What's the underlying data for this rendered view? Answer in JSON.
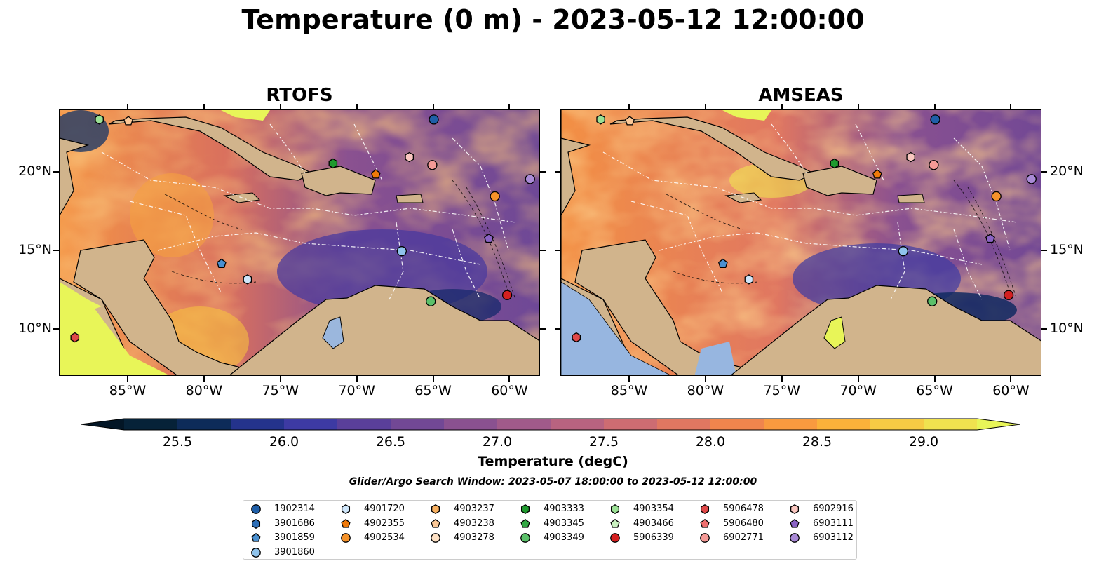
{
  "title": "Temperature (0 m) - 2023-05-12 12:00:00",
  "panels": [
    {
      "title": "RTOFS"
    },
    {
      "title": "AMSEAS"
    }
  ],
  "map_axes": {
    "lon_range": [
      -89.5,
      -58.0
    ],
    "lat_range": [
      7.0,
      24.0
    ],
    "x_ticks": [
      {
        "value": -85,
        "label": "85°W"
      },
      {
        "value": -80,
        "label": "80°W"
      },
      {
        "value": -75,
        "label": "75°W"
      },
      {
        "value": -70,
        "label": "70°W"
      },
      {
        "value": -65,
        "label": "65°W"
      },
      {
        "value": -60,
        "label": "60°W"
      }
    ],
    "y_ticks": [
      {
        "value": 20,
        "label": "20°N"
      },
      {
        "value": 15,
        "label": "15°N"
      },
      {
        "value": 10,
        "label": "10°N"
      }
    ]
  },
  "colorbar": {
    "label": "Temperature (degC)",
    "min": 25.25,
    "max": 29.25,
    "extend": "both",
    "ticks": [
      "25.5",
      "26.0",
      "26.5",
      "27.0",
      "27.5",
      "28.0",
      "28.5",
      "29.0"
    ],
    "colors": [
      "#062238",
      "#0d2b59",
      "#24338c",
      "#3d3aa3",
      "#5a3f9a",
      "#724895",
      "#8a5190",
      "#a15a8a",
      "#b86380",
      "#cd6c72",
      "#e07761",
      "#f0854d",
      "#f99a3f",
      "#fbb13a",
      "#f6cb44",
      "#f0e24f"
    ],
    "under_color": "#031626",
    "over_color": "#e8f558"
  },
  "search_window": "Glider/Argo Search Window: 2023-05-07 18:00:00 to 2023-05-12 12:00:00",
  "land_color": "#d1b48c",
  "legend": [
    {
      "id": "1902314",
      "marker": "circle",
      "color": "#1f5fa8"
    },
    {
      "id": "3901686",
      "marker": "hexagon",
      "color": "#2d6fb8"
    },
    {
      "id": "3901859",
      "marker": "pentagon",
      "color": "#4a90d0"
    },
    {
      "id": "3901860",
      "marker": "circle",
      "color": "#8fc3ec"
    },
    {
      "id": "4901720",
      "marker": "hexagon",
      "color": "#cfe6fa"
    },
    {
      "id": "4902355",
      "marker": "pentagon",
      "color": "#f07a0a"
    },
    {
      "id": "4902534",
      "marker": "circle",
      "color": "#f5922a"
    },
    {
      "id": "4903237",
      "marker": "hexagon",
      "color": "#f8b060"
    },
    {
      "id": "4903238",
      "marker": "pentagon",
      "color": "#fbc897"
    },
    {
      "id": "4903278",
      "marker": "circle",
      "color": "#fde0c4"
    },
    {
      "id": "4903333",
      "marker": "hexagon",
      "color": "#1f9a2e"
    },
    {
      "id": "4903345",
      "marker": "pentagon",
      "color": "#33a844"
    },
    {
      "id": "4903349",
      "marker": "circle",
      "color": "#5bc06a"
    },
    {
      "id": "4903354",
      "marker": "hexagon",
      "color": "#9be195"
    },
    {
      "id": "4903466",
      "marker": "pentagon",
      "color": "#c9f1c0"
    },
    {
      "id": "5906339",
      "marker": "circle",
      "color": "#d42020"
    },
    {
      "id": "5906478",
      "marker": "hexagon",
      "color": "#e04848"
    },
    {
      "id": "5906480",
      "marker": "pentagon",
      "color": "#ee7070"
    },
    {
      "id": "6902771",
      "marker": "circle",
      "color": "#f59a96"
    },
    {
      "id": "6902916",
      "marker": "hexagon",
      "color": "#fac7c0"
    },
    {
      "id": "6903111",
      "marker": "pentagon",
      "color": "#8a63c4"
    },
    {
      "id": "6903112",
      "marker": "circle",
      "color": "#a98ad6"
    }
  ],
  "floats": [
    {
      "lon": -86.9,
      "lat": 23.4,
      "marker": "hexagon",
      "color": "#9be195"
    },
    {
      "lon": -85.0,
      "lat": 23.3,
      "marker": "pentagon",
      "color": "#fbc897"
    },
    {
      "lon": -65.0,
      "lat": 23.4,
      "marker": "circle",
      "color": "#1f5fa8"
    },
    {
      "lon": -66.6,
      "lat": 21.0,
      "marker": "hexagon",
      "color": "#fac7c0"
    },
    {
      "lon": -65.1,
      "lat": 20.5,
      "marker": "circle",
      "color": "#f59a96"
    },
    {
      "lon": -71.6,
      "lat": 20.6,
      "marker": "hexagon",
      "color": "#1f9a2e"
    },
    {
      "lon": -68.8,
      "lat": 19.9,
      "marker": "pentagon",
      "color": "#f07a0a"
    },
    {
      "lon": -58.7,
      "lat": 19.6,
      "marker": "circle",
      "color": "#a98ad6"
    },
    {
      "lon": -61.0,
      "lat": 18.5,
      "marker": "circle",
      "color": "#f5922a"
    },
    {
      "lon": -61.4,
      "lat": 15.8,
      "marker": "pentagon",
      "color": "#8a63c4"
    },
    {
      "lon": -67.1,
      "lat": 15.0,
      "marker": "circle",
      "color": "#8fc3ec"
    },
    {
      "lon": -78.9,
      "lat": 14.2,
      "marker": "pentagon",
      "color": "#4a90d0"
    },
    {
      "lon": -77.2,
      "lat": 13.2,
      "marker": "hexagon",
      "color": "#cfe6fa"
    },
    {
      "lon": -60.2,
      "lat": 12.2,
      "marker": "circle",
      "color": "#d42020"
    },
    {
      "lon": -65.2,
      "lat": 11.8,
      "marker": "circle",
      "color": "#5bc06a"
    },
    {
      "lon": -88.5,
      "lat": 9.5,
      "marker": "hexagon",
      "color": "#e04848"
    }
  ]
}
